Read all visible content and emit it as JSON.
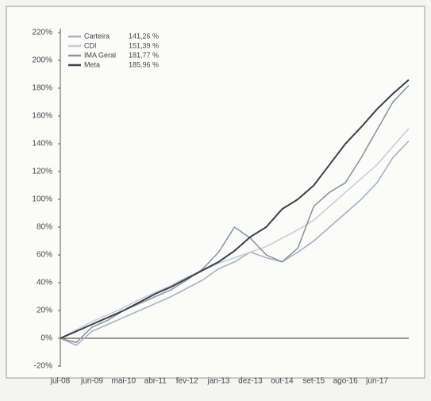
{
  "chart_data": {
    "type": "line",
    "categories": [
      "jul-08",
      null,
      "jun-09",
      null,
      "mai-10",
      null,
      "abr-11",
      null,
      "fev-12",
      null,
      "jan-13",
      null,
      "dez-13",
      null,
      "out-14",
      null,
      "set-15",
      null,
      "ago-16",
      null,
      "jun-17",
      null,
      null
    ],
    "series": [
      {
        "name": "Carteira",
        "legend_value": "141,26 %",
        "color": "#a9b1bd",
        "values": [
          0,
          -5,
          5,
          10,
          15,
          20,
          25,
          30,
          36,
          42,
          50,
          55,
          62,
          58,
          55,
          62,
          70,
          80,
          90,
          100,
          112,
          130,
          142
        ]
      },
      {
        "name": "CDI",
        "legend_value": "151,39 %",
        "color": "#c8ced6",
        "values": [
          0,
          6,
          12,
          17,
          22,
          28,
          33,
          38,
          44,
          49,
          54,
          58,
          62,
          66,
          72,
          78,
          85,
          95,
          105,
          115,
          125,
          138,
          151
        ]
      },
      {
        "name": "IMA Geral",
        "legend_value": "181,77 %",
        "color": "#8d959f",
        "values": [
          0,
          -3,
          8,
          13,
          20,
          25,
          30,
          35,
          42,
          50,
          62,
          80,
          72,
          60,
          55,
          65,
          95,
          105,
          112,
          130,
          150,
          170,
          182
        ]
      },
      {
        "name": "Meta",
        "legend_value": "185,96 %",
        "color": "#3b4049",
        "values": [
          0,
          5,
          10,
          15,
          20,
          26,
          32,
          37,
          43,
          49,
          55,
          63,
          73,
          80,
          93,
          100,
          110,
          125,
          140,
          152,
          165,
          176,
          186
        ]
      }
    ],
    "ylim": [
      -20,
      220
    ],
    "yticks": [
      {
        "value": -20,
        "label": "-20%"
      },
      {
        "value": 0,
        "label": "0%"
      },
      {
        "value": 20,
        "label": "20%"
      },
      {
        "value": 40,
        "label": "40%"
      },
      {
        "value": 60,
        "label": "60%"
      },
      {
        "value": 80,
        "label": "80%"
      },
      {
        "value": 100,
        "label": "100%"
      },
      {
        "value": 120,
        "label": "120%"
      },
      {
        "value": 140,
        "label": "140%"
      },
      {
        "value": 160,
        "label": "160%"
      },
      {
        "value": 180,
        "label": "180%"
      },
      {
        "value": 200,
        "label": "200%"
      },
      {
        "value": 220,
        "label": "220%"
      }
    ],
    "grid": false,
    "legend": "top-left"
  }
}
